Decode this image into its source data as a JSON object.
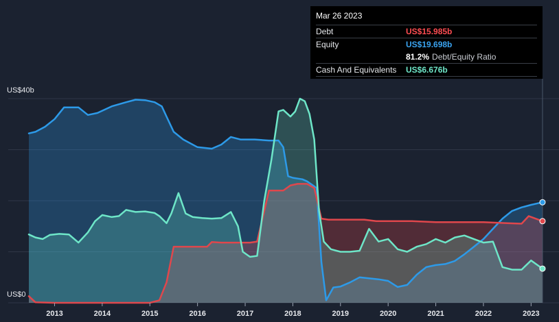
{
  "tooltip": {
    "date": "Mar 26 2023",
    "debt_label": "Debt",
    "debt_value": "US$15.985b",
    "equity_label": "Equity",
    "equity_value": "US$19.698b",
    "ratio_value": "81.2%",
    "ratio_label": "Debt/Equity Ratio",
    "cash_label": "Cash And Equivalents",
    "cash_value": "US$6.676b"
  },
  "colors": {
    "background": "#1b2230",
    "debt": "#e0474c",
    "equity": "#2d9ae8",
    "cash": "#6ee6c8",
    "grid": "#2f3747"
  },
  "chart_data": {
    "type": "area",
    "title": "",
    "xlabel": "",
    "ylabel": "",
    "y_unit": "US$ billions",
    "ylim": [
      0,
      40
    ],
    "y_ticks": [
      {
        "value": 40,
        "label": "US$40b"
      },
      {
        "value": 0,
        "label": "US$0"
      }
    ],
    "grid": true,
    "x_ticks": [
      "2013",
      "2014",
      "2015",
      "2016",
      "2017",
      "2018",
      "2019",
      "2020",
      "2021",
      "2022",
      "2023"
    ],
    "x_tick_values": [
      2013,
      2014,
      2015,
      2016,
      2017,
      2018,
      2019,
      2020,
      2021,
      2022,
      2023
    ],
    "xlim": [
      2012.46,
      2023.24
    ],
    "series": [
      {
        "name": "Debt",
        "color": "#e0474c",
        "points": [
          [
            2012.46,
            1.3
          ],
          [
            2012.6,
            0.1
          ],
          [
            2013.0,
            0.0
          ],
          [
            2014.0,
            0.0
          ],
          [
            2015.0,
            0.0
          ],
          [
            2015.2,
            0.5
          ],
          [
            2015.35,
            4.0
          ],
          [
            2015.5,
            11.0
          ],
          [
            2016.0,
            11.0
          ],
          [
            2016.2,
            11.0
          ],
          [
            2016.3,
            11.9
          ],
          [
            2016.5,
            11.8
          ],
          [
            2016.9,
            11.8
          ],
          [
            2017.1,
            11.8
          ],
          [
            2017.25,
            12.0
          ],
          [
            2017.4,
            18.0
          ],
          [
            2017.5,
            22.0
          ],
          [
            2017.8,
            22.0
          ],
          [
            2017.95,
            23.0
          ],
          [
            2018.1,
            23.3
          ],
          [
            2018.3,
            23.3
          ],
          [
            2018.45,
            22.5
          ],
          [
            2018.6,
            16.5
          ],
          [
            2018.75,
            16.3
          ],
          [
            2019.0,
            16.3
          ],
          [
            2019.5,
            16.3
          ],
          [
            2019.75,
            16.0
          ],
          [
            2020.0,
            16.0
          ],
          [
            2020.5,
            16.0
          ],
          [
            2021.0,
            15.8
          ],
          [
            2021.5,
            15.8
          ],
          [
            2022.0,
            15.8
          ],
          [
            2022.5,
            15.6
          ],
          [
            2022.8,
            15.5
          ],
          [
            2022.95,
            17.0
          ],
          [
            2023.24,
            16.0
          ]
        ]
      },
      {
        "name": "Equity",
        "color": "#2d9ae8",
        "points": [
          [
            2012.46,
            33.2
          ],
          [
            2012.6,
            33.5
          ],
          [
            2012.8,
            34.5
          ],
          [
            2013.0,
            36.0
          ],
          [
            2013.2,
            38.3
          ],
          [
            2013.5,
            38.3
          ],
          [
            2013.7,
            36.8
          ],
          [
            2013.9,
            37.2
          ],
          [
            2014.2,
            38.5
          ],
          [
            2014.5,
            39.3
          ],
          [
            2014.7,
            39.8
          ],
          [
            2014.9,
            39.7
          ],
          [
            2015.1,
            39.3
          ],
          [
            2015.25,
            38.5
          ],
          [
            2015.35,
            36.5
          ],
          [
            2015.5,
            33.5
          ],
          [
            2015.7,
            32.0
          ],
          [
            2016.0,
            30.5
          ],
          [
            2016.3,
            30.2
          ],
          [
            2016.5,
            31.0
          ],
          [
            2016.7,
            32.5
          ],
          [
            2016.9,
            32.0
          ],
          [
            2017.2,
            32.0
          ],
          [
            2017.5,
            31.8
          ],
          [
            2017.7,
            31.8
          ],
          [
            2017.8,
            30.5
          ],
          [
            2017.9,
            24.8
          ],
          [
            2018.0,
            24.5
          ],
          [
            2018.2,
            24.2
          ],
          [
            2018.3,
            23.8
          ],
          [
            2018.5,
            22.5
          ],
          [
            2018.6,
            8.0
          ],
          [
            2018.7,
            0.5
          ],
          [
            2018.85,
            3.0
          ],
          [
            2019.0,
            3.2
          ],
          [
            2019.2,
            4.0
          ],
          [
            2019.4,
            5.0
          ],
          [
            2019.6,
            4.8
          ],
          [
            2019.8,
            4.6
          ],
          [
            2020.0,
            4.3
          ],
          [
            2020.2,
            3.1
          ],
          [
            2020.4,
            3.5
          ],
          [
            2020.6,
            5.5
          ],
          [
            2020.8,
            7.0
          ],
          [
            2021.0,
            7.4
          ],
          [
            2021.2,
            7.6
          ],
          [
            2021.4,
            8.2
          ],
          [
            2021.6,
            9.5
          ],
          [
            2021.8,
            11.0
          ],
          [
            2022.0,
            12.5
          ],
          [
            2022.2,
            14.5
          ],
          [
            2022.4,
            16.5
          ],
          [
            2022.6,
            18.0
          ],
          [
            2022.8,
            18.7
          ],
          [
            2023.0,
            19.2
          ],
          [
            2023.24,
            19.7
          ]
        ]
      },
      {
        "name": "Cash And Equivalents",
        "color": "#6ee6c8",
        "points": [
          [
            2012.46,
            13.4
          ],
          [
            2012.6,
            12.8
          ],
          [
            2012.75,
            12.5
          ],
          [
            2012.9,
            13.3
          ],
          [
            2013.1,
            13.5
          ],
          [
            2013.3,
            13.4
          ],
          [
            2013.5,
            11.8
          ],
          [
            2013.7,
            13.8
          ],
          [
            2013.85,
            16.0
          ],
          [
            2014.0,
            17.2
          ],
          [
            2014.2,
            16.8
          ],
          [
            2014.35,
            17.0
          ],
          [
            2014.5,
            18.2
          ],
          [
            2014.7,
            17.8
          ],
          [
            2014.9,
            17.9
          ],
          [
            2015.1,
            17.6
          ],
          [
            2015.2,
            17.0
          ],
          [
            2015.35,
            15.6
          ],
          [
            2015.45,
            17.5
          ],
          [
            2015.6,
            21.5
          ],
          [
            2015.75,
            17.5
          ],
          [
            2015.9,
            16.8
          ],
          [
            2016.1,
            16.6
          ],
          [
            2016.3,
            16.5
          ],
          [
            2016.5,
            16.6
          ],
          [
            2016.7,
            17.8
          ],
          [
            2016.85,
            15.0
          ],
          [
            2016.95,
            10.0
          ],
          [
            2017.1,
            9.0
          ],
          [
            2017.25,
            9.2
          ],
          [
            2017.4,
            20.0
          ],
          [
            2017.55,
            28.0
          ],
          [
            2017.7,
            37.5
          ],
          [
            2017.8,
            37.8
          ],
          [
            2017.95,
            36.5
          ],
          [
            2018.05,
            37.5
          ],
          [
            2018.15,
            40.0
          ],
          [
            2018.25,
            39.5
          ],
          [
            2018.35,
            37.0
          ],
          [
            2018.45,
            32.0
          ],
          [
            2018.55,
            18.0
          ],
          [
            2018.65,
            12.0
          ],
          [
            2018.8,
            10.5
          ],
          [
            2019.0,
            10.0
          ],
          [
            2019.2,
            10.0
          ],
          [
            2019.4,
            10.2
          ],
          [
            2019.6,
            14.5
          ],
          [
            2019.8,
            12.0
          ],
          [
            2020.0,
            12.5
          ],
          [
            2020.2,
            10.5
          ],
          [
            2020.4,
            10.0
          ],
          [
            2020.6,
            11.0
          ],
          [
            2020.8,
            11.5
          ],
          [
            2021.0,
            12.5
          ],
          [
            2021.2,
            11.8
          ],
          [
            2021.4,
            12.8
          ],
          [
            2021.6,
            13.2
          ],
          [
            2021.8,
            12.5
          ],
          [
            2022.0,
            11.8
          ],
          [
            2022.2,
            12.0
          ],
          [
            2022.4,
            7.0
          ],
          [
            2022.6,
            6.5
          ],
          [
            2022.8,
            6.5
          ],
          [
            2023.0,
            8.3
          ],
          [
            2023.24,
            6.7
          ]
        ]
      }
    ],
    "legend": "tooltip top-right"
  }
}
